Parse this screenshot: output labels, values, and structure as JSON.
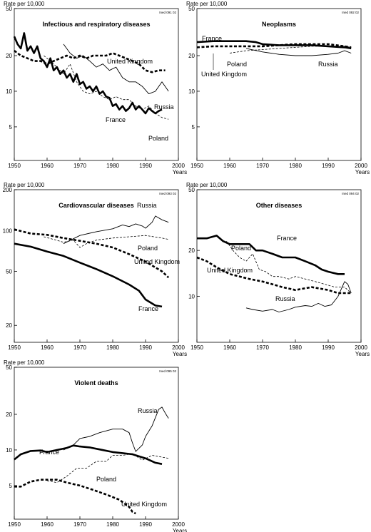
{
  "chart_data": [
    {
      "type": "line",
      "title": "Infectious and respiratory diseases",
      "ylabel": "Rate per 10,000",
      "xlabel": "Years",
      "code": "Ined 091 02",
      "scale": "log",
      "xlim": [
        1950,
        2000
      ],
      "ylim": [
        2.6,
        50
      ],
      "yticks": [
        5,
        10,
        20,
        50
      ],
      "xticks": [
        1950,
        1960,
        1970,
        1980,
        1990,
        2000
      ],
      "series": [
        {
          "name": "France",
          "style": "thick",
          "x": [
            1950,
            1951,
            1952,
            1953,
            1954,
            1955,
            1956,
            1957,
            1958,
            1959,
            1960,
            1961,
            1962,
            1963,
            1964,
            1965,
            1966,
            1967,
            1968,
            1969,
            1970,
            1971,
            1972,
            1973,
            1974,
            1975,
            1976,
            1977,
            1978,
            1979,
            1980,
            1981,
            1982,
            1983,
            1984,
            1985,
            1986,
            1987,
            1988,
            1989,
            1990,
            1991,
            1992,
            1993,
            1994,
            1995
          ],
          "y": [
            29,
            25,
            23,
            31,
            22,
            24,
            21,
            24,
            19,
            18,
            16,
            19,
            15,
            16,
            14,
            15,
            13,
            14,
            12,
            14,
            11.5,
            12,
            10.5,
            11,
            10,
            11,
            9.5,
            10,
            9,
            8.8,
            7.5,
            7.8,
            7,
            7.5,
            6.8,
            7.2,
            8,
            7,
            7.5,
            7,
            6.5,
            7.2,
            6.8,
            6.5,
            6.8,
            7
          ]
        },
        {
          "name": "United Kingdom",
          "style": "dashed",
          "x": [
            1950,
            1952,
            1954,
            1956,
            1958,
            1960,
            1962,
            1964,
            1966,
            1968,
            1970,
            1972,
            1974,
            1976,
            1978,
            1980,
            1982,
            1984,
            1986,
            1988,
            1990,
            1992,
            1994,
            1996
          ],
          "y": [
            22,
            20,
            19,
            18,
            18,
            17,
            18,
            19,
            20,
            19,
            20,
            19,
            20,
            20,
            20,
            21,
            20,
            19,
            18,
            17,
            15,
            14.5,
            15,
            15
          ]
        },
        {
          "name": "Poland",
          "style": "thin-dashed",
          "x": [
            1959,
            1961,
            1963,
            1965,
            1967,
            1969,
            1971,
            1973,
            1975,
            1977,
            1979,
            1981,
            1983,
            1985,
            1987,
            1989,
            1991,
            1993,
            1995,
            1997
          ],
          "y": [
            20,
            18,
            16,
            14,
            17,
            12,
            10,
            9.5,
            10,
            9,
            8.5,
            9,
            8.5,
            8.5,
            7.5,
            7,
            7.5,
            6.5,
            6,
            5.8
          ]
        },
        {
          "name": "Russia",
          "style": "thin",
          "x": [
            1965,
            1967,
            1969,
            1971,
            1973,
            1975,
            1977,
            1979,
            1981,
            1983,
            1985,
            1987,
            1989,
            1991,
            1993,
            1995,
            1997
          ],
          "y": [
            25,
            21,
            19,
            20,
            18,
            16,
            17,
            15,
            16,
            13,
            12,
            12,
            11,
            9.5,
            10,
            12,
            10
          ]
        }
      ],
      "labels": [
        {
          "series": "United Kingdom",
          "text": "United Kingdom"
        },
        {
          "series": "Russia",
          "text": "Russia"
        },
        {
          "series": "France",
          "text": "France"
        },
        {
          "series": "Poland",
          "text": "Poland"
        }
      ]
    },
    {
      "type": "line",
      "title": "Neoplasms",
      "ylabel": "Rate per 10,000",
      "xlabel": "Years",
      "code": "Ined 092 02",
      "scale": "log",
      "xlim": [
        1950,
        2000
      ],
      "ylim": [
        2.6,
        50
      ],
      "yticks": [
        5,
        10,
        20,
        50
      ],
      "xticks": [
        1950,
        1960,
        1970,
        1980,
        1990,
        2000
      ],
      "series": [
        {
          "name": "France",
          "style": "thick",
          "x": [
            1950,
            1955,
            1960,
            1965,
            1968,
            1970,
            1975,
            1980,
            1985,
            1990,
            1995,
            1997
          ],
          "y": [
            26,
            26.5,
            26.5,
            26.5,
            26,
            25,
            24.5,
            24.5,
            24.5,
            24,
            23.5,
            23
          ]
        },
        {
          "name": "United Kingdom",
          "style": "dashed",
          "x": [
            1950,
            1955,
            1960,
            1965,
            1970,
            1975,
            1980,
            1985,
            1990,
            1995,
            1997
          ],
          "y": [
            23.5,
            24,
            24,
            24,
            24,
            24.5,
            25,
            25,
            25,
            24,
            23.5
          ]
        },
        {
          "name": "Poland",
          "style": "thin-dashed",
          "x": [
            1960,
            1965,
            1970,
            1975,
            1980,
            1985,
            1990,
            1995,
            1997
          ],
          "y": [
            21,
            22,
            22.5,
            23,
            23.5,
            24,
            24,
            24,
            23.5
          ]
        },
        {
          "name": "Russia",
          "style": "thin",
          "x": [
            1965,
            1970,
            1975,
            1980,
            1985,
            1990,
            1993,
            1995,
            1997
          ],
          "y": [
            23,
            21.5,
            20.5,
            20,
            20,
            20.5,
            21,
            22,
            21
          ]
        }
      ],
      "labels": [
        {
          "series": "France",
          "text": "France"
        },
        {
          "series": "Poland",
          "text": "Poland"
        },
        {
          "series": "United Kingdom",
          "text": "United Kingdom"
        },
        {
          "series": "Russia",
          "text": "Russia"
        }
      ]
    },
    {
      "type": "line",
      "title": "Cardiovascular diseases",
      "ylabel": "Rate per 10,000",
      "xlabel": "Years",
      "code": "Ined 093 02",
      "scale": "log",
      "xlim": [
        1950,
        2000
      ],
      "ylim": [
        15,
        200
      ],
      "yticks": [
        20,
        50,
        100,
        200
      ],
      "xticks": [
        1950,
        1960,
        1970,
        1980,
        1990,
        2000
      ],
      "series": [
        {
          "name": "France",
          "style": "thick",
          "x": [
            1950,
            1955,
            1960,
            1965,
            1970,
            1975,
            1980,
            1985,
            1988,
            1990,
            1993,
            1995
          ],
          "y": [
            80,
            76,
            70,
            65,
            58,
            52,
            46,
            40,
            36,
            31,
            28,
            27.5
          ]
        },
        {
          "name": "United Kingdom",
          "style": "dashed",
          "x": [
            1950,
            1955,
            1960,
            1965,
            1970,
            1975,
            1980,
            1985,
            1990,
            1995,
            1997
          ],
          "y": [
            102,
            95,
            93,
            88,
            84,
            80,
            75,
            67,
            59,
            50,
            45
          ]
        },
        {
          "name": "Poland",
          "style": "thin-dashed",
          "x": [
            1959,
            1962,
            1965,
            1968,
            1970,
            1972,
            1975,
            1980,
            1985,
            1990,
            1995,
            1997
          ],
          "y": [
            90,
            86,
            82,
            85,
            75,
            80,
            85,
            88,
            90,
            92,
            88,
            86
          ]
        },
        {
          "name": "Russia",
          "style": "thin",
          "x": [
            1965,
            1970,
            1975,
            1980,
            1983,
            1985,
            1987,
            1989,
            1990,
            1992,
            1993,
            1995,
            1997
          ],
          "y": [
            80,
            92,
            98,
            103,
            110,
            107,
            112,
            108,
            104,
            115,
            128,
            120,
            115
          ]
        }
      ],
      "labels": [
        {
          "series": "Russia",
          "text": "Russia"
        },
        {
          "series": "Poland",
          "text": "Poland"
        },
        {
          "series": "United Kingdom",
          "text": "United Kingdom"
        },
        {
          "series": "France",
          "text": "France"
        }
      ]
    },
    {
      "type": "line",
      "title": "Other diseases",
      "ylabel": "Rate per 10,000",
      "xlabel": "Years",
      "code": "Ined 094 02",
      "scale": "log",
      "xlim": [
        1950,
        2000
      ],
      "ylim": [
        5,
        50
      ],
      "yticks": [
        10,
        20,
        50
      ],
      "xticks": [
        1950,
        1960,
        1970,
        1980,
        1990,
        2000
      ],
      "series": [
        {
          "name": "France",
          "style": "thick",
          "x": [
            1950,
            1953,
            1956,
            1958,
            1960,
            1963,
            1966,
            1968,
            1970,
            1973,
            1976,
            1980,
            1983,
            1986,
            1988,
            1990,
            1993,
            1995
          ],
          "y": [
            24,
            24,
            25,
            23,
            22,
            22,
            22,
            20,
            20,
            19,
            18,
            18,
            17,
            16,
            15,
            14.5,
            14,
            14
          ]
        },
        {
          "name": "United Kingdom",
          "style": "dashed",
          "x": [
            1950,
            1953,
            1956,
            1960,
            1963,
            1966,
            1970,
            1973,
            1976,
            1980,
            1985,
            1990,
            1993,
            1995,
            1997
          ],
          "y": [
            18,
            17,
            15.5,
            14,
            13.5,
            13,
            12.5,
            12,
            11.5,
            11,
            11.5,
            11,
            10.5,
            10.5,
            10.5
          ]
        },
        {
          "name": "Poland",
          "style": "thin-dashed",
          "x": [
            1959,
            1961,
            1963,
            1965,
            1967,
            1969,
            1971,
            1973,
            1975,
            1978,
            1980,
            1983,
            1986,
            1989,
            1992,
            1995,
            1997
          ],
          "y": [
            23,
            20,
            18,
            17,
            19,
            15,
            14.5,
            13.5,
            13.5,
            13,
            13.5,
            13,
            12.5,
            12,
            11.5,
            11.5,
            10.5
          ]
        },
        {
          "name": "Russia",
          "style": "thin",
          "x": [
            1965,
            1967,
            1970,
            1973,
            1975,
            1978,
            1980,
            1983,
            1985,
            1987,
            1989,
            1991,
            1993,
            1995,
            1996,
            1997
          ],
          "y": [
            8.4,
            8.2,
            8,
            8.2,
            7.9,
            8.2,
            8.5,
            8.7,
            8.6,
            9,
            8.6,
            8.8,
            10,
            12.5,
            12,
            10.5
          ]
        }
      ],
      "labels": [
        {
          "series": "France",
          "text": "France"
        },
        {
          "series": "Poland",
          "text": "Poland"
        },
        {
          "series": "United Kingdom",
          "text": "United Kingdom"
        },
        {
          "series": "Russia",
          "text": "Russia"
        }
      ]
    },
    {
      "type": "line",
      "title": "Violent deaths",
      "ylabel": "Rate per 10,000",
      "xlabel": "Years",
      "code": "Ined 095 02",
      "scale": "log",
      "xlim": [
        1950,
        2000
      ],
      "ylim": [
        2.6,
        50
      ],
      "yticks": [
        5,
        10,
        20,
        50
      ],
      "xticks": [
        1950,
        1960,
        1970,
        1980,
        1990,
        2000
      ],
      "series": [
        {
          "name": "France",
          "style": "thick",
          "x": [
            1950,
            1952,
            1955,
            1958,
            1960,
            1963,
            1966,
            1968,
            1970,
            1973,
            1976,
            1980,
            1983,
            1986,
            1990,
            1993,
            1995
          ],
          "y": [
            8.3,
            9.2,
            9.8,
            9.9,
            9.6,
            10,
            10.4,
            10.9,
            10.7,
            10.5,
            10.1,
            9.6,
            9.4,
            9.2,
            8.5,
            7.8,
            7.6
          ]
        },
        {
          "name": "United Kingdom",
          "style": "dashed",
          "x": [
            1950,
            1952,
            1955,
            1958,
            1960,
            1963,
            1966,
            1970,
            1974,
            1978,
            1982,
            1985,
            1986,
            1987
          ],
          "y": [
            4.9,
            4.9,
            5.4,
            5.6,
            5.6,
            5.6,
            5.3,
            5,
            4.6,
            4.2,
            3.8,
            3.3,
            3,
            2.9
          ]
        },
        {
          "name": "Poland",
          "style": "thin-dashed",
          "x": [
            1960,
            1963,
            1966,
            1969,
            1972,
            1975,
            1978,
            1980,
            1983,
            1986,
            1989,
            1992,
            1995,
            1997
          ],
          "y": [
            5.5,
            5.3,
            6,
            7,
            7,
            8,
            8,
            9,
            9,
            9.3,
            8.2,
            9,
            8.7,
            8.5
          ]
        },
        {
          "name": "Russia",
          "style": "thin",
          "x": [
            1965,
            1968,
            1970,
            1973,
            1976,
            1980,
            1983,
            1985,
            1986,
            1987,
            1989,
            1990,
            1992,
            1994,
            1995,
            1996,
            1997
          ],
          "y": [
            10,
            11,
            12.5,
            13,
            14,
            15,
            15,
            14,
            11.5,
            9.7,
            11,
            13,
            16,
            22,
            23,
            20.5,
            18.5
          ]
        }
      ],
      "labels": [
        {
          "series": "Russia",
          "text": "Russia"
        },
        {
          "series": "France",
          "text": "France"
        },
        {
          "series": "Poland",
          "text": "Poland"
        },
        {
          "series": "United Kingdom",
          "text": "United Kingdom"
        }
      ]
    }
  ]
}
